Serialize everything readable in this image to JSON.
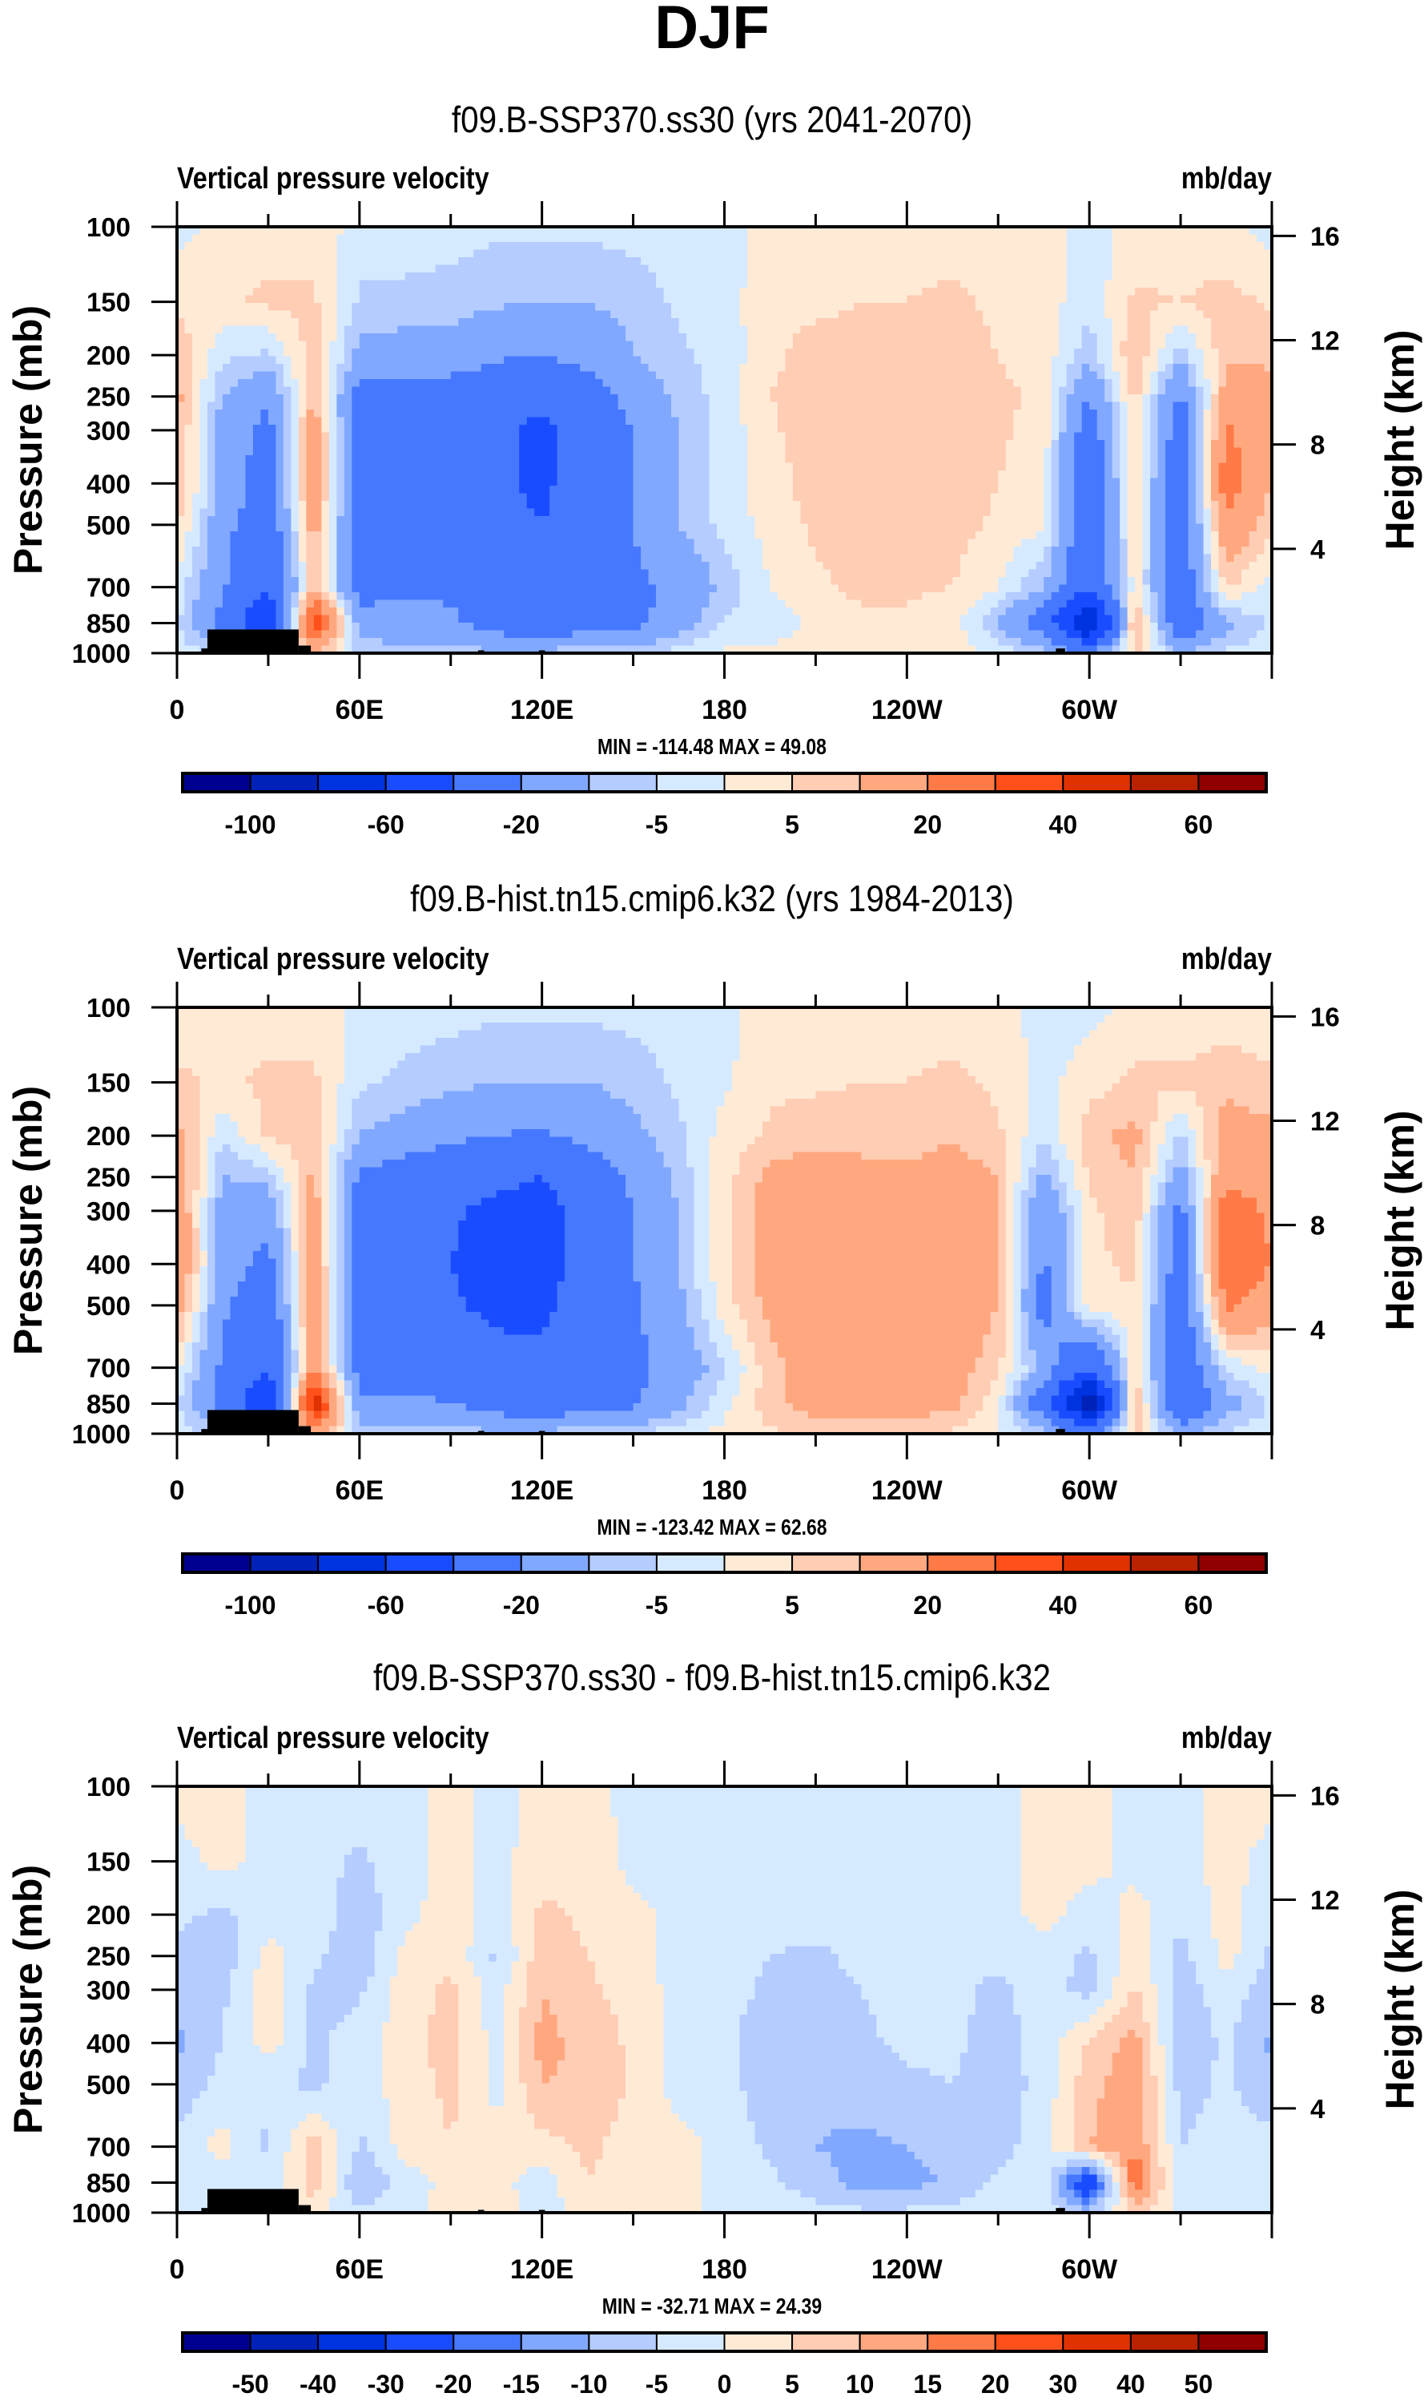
{
  "header": {
    "title": "DJF"
  },
  "chart_data": [
    {
      "type": "heatmap",
      "title": "f09.B-SSP370.ss30 (yrs 2041-2070)",
      "left_string": "Vertical pressure velocity",
      "right_string": "mb/day",
      "xlabel": "",
      "ylabel": "Pressure (mb)",
      "ylabel_right": "Height (km)",
      "x_ticks": [
        "0",
        "60E",
        "120E",
        "180",
        "120W",
        "60W"
      ],
      "y_ticks": [
        "100",
        "150",
        "200",
        "250",
        "300",
        "400",
        "500",
        "700",
        "850",
        "1000"
      ],
      "y_ticks_right": [
        "16",
        "12",
        "8",
        "4"
      ],
      "xlim": [
        0,
        360
      ],
      "ylim": [
        1000,
        100
      ],
      "minmax_text": "MIN = -114.48  MAX =  49.08",
      "min": -114.48,
      "max": 49.08,
      "contour_levels": [
        -100,
        -80,
        -60,
        -40,
        -20,
        -10,
        -5,
        0,
        5,
        10,
        20,
        30,
        40,
        50,
        60
      ],
      "colorbar_labels": [
        "-100",
        "-60",
        "-20",
        "-5",
        "5",
        "20",
        "40",
        "60"
      ],
      "colorbar_label_levels": [
        -100,
        -60,
        -20,
        -5,
        5,
        20,
        40,
        60
      ],
      "grid_lon": [
        0,
        15,
        30,
        45,
        60,
        75,
        90,
        105,
        120,
        135,
        150,
        165,
        180,
        195,
        210,
        225,
        240,
        255,
        270,
        285,
        300,
        315,
        330,
        345,
        360
      ],
      "grid_lev": [
        100,
        150,
        200,
        250,
        300,
        400,
        500,
        700,
        850,
        1000
      ],
      "values": [
        [
          -2,
          2,
          3,
          3,
          -2,
          -3,
          -3,
          -4,
          -4,
          -4,
          -3,
          -2,
          -2,
          2,
          3,
          3,
          3,
          3,
          2,
          2,
          -2,
          2,
          2,
          1,
          -2
        ],
        [
          4,
          4,
          6,
          6,
          -6,
          -6,
          -7,
          -9,
          -10,
          -10,
          -8,
          -4,
          -2,
          3,
          4,
          5,
          5,
          6,
          4,
          3,
          -4,
          6,
          5,
          7,
          4
        ],
        [
          9,
          -4,
          -6,
          8,
          -12,
          -14,
          -14,
          -18,
          -20,
          -16,
          -10,
          -6,
          -3,
          4,
          7,
          6,
          6,
          7,
          5,
          3,
          -8,
          10,
          -8,
          9,
          9
        ],
        [
          12,
          -10,
          -18,
          10,
          -25,
          -26,
          -26,
          -30,
          -35,
          -26,
          -16,
          -8,
          -3,
          5,
          7,
          7,
          7,
          8,
          6,
          4,
          -20,
          7,
          -22,
          14,
          12
        ],
        [
          11,
          -14,
          -24,
          16,
          -28,
          -28,
          -28,
          -36,
          -45,
          -30,
          -20,
          -10,
          -3,
          4,
          8,
          8,
          9,
          10,
          6,
          3,
          -28,
          6,
          -28,
          22,
          11
        ],
        [
          10,
          -12,
          -26,
          18,
          -28,
          -28,
          -28,
          -36,
          -44,
          -30,
          -20,
          -10,
          -3,
          3,
          7,
          8,
          9,
          8,
          5,
          2,
          -30,
          4,
          -30,
          26,
          10
        ],
        [
          6,
          -16,
          -30,
          14,
          -28,
          -28,
          -27,
          -34,
          -40,
          -28,
          -20,
          -10,
          -3,
          2,
          6,
          8,
          8,
          7,
          4,
          1,
          -30,
          4,
          -30,
          18,
          6
        ],
        [
          -2,
          -18,
          -40,
          10,
          -26,
          -22,
          -22,
          -28,
          -32,
          -26,
          -22,
          -18,
          -8,
          0,
          4,
          6,
          6,
          5,
          0,
          -10,
          -36,
          3,
          -30,
          6,
          -2
        ],
        [
          -4,
          -24,
          -60,
          40,
          -14,
          -16,
          -18,
          -26,
          -30,
          -26,
          -24,
          -14,
          -4,
          -4,
          2,
          4,
          4,
          2,
          -10,
          -28,
          -90,
          14,
          -32,
          -12,
          -4
        ],
        [
          -2,
          -6,
          -20,
          10,
          -6,
          -8,
          -8,
          -8,
          -8,
          -6,
          -5,
          -3,
          1,
          2,
          3,
          4,
          4,
          3,
          -2,
          -8,
          -20,
          6,
          -10,
          -4,
          -2
        ]
      ],
      "terrain": [
        [
          10,
          40,
          880
        ],
        [
          8,
          12,
          975
        ],
        [
          40,
          44,
          960
        ],
        [
          99,
          101,
          985
        ],
        [
          119,
          121,
          985
        ],
        [
          125,
          160,
          992
        ],
        [
          289,
          292,
          975
        ],
        [
          292,
          310,
          992
        ]
      ]
    },
    {
      "type": "heatmap",
      "title": "f09.B-hist.tn15.cmip6.k32 (yrs 1984-2013)",
      "left_string": "Vertical pressure velocity",
      "right_string": "mb/day",
      "xlabel": "",
      "ylabel": "Pressure (mb)",
      "ylabel_right": "Height (km)",
      "x_ticks": [
        "0",
        "60E",
        "120E",
        "180",
        "120W",
        "60W"
      ],
      "y_ticks": [
        "100",
        "150",
        "200",
        "250",
        "300",
        "400",
        "500",
        "700",
        "850",
        "1000"
      ],
      "y_ticks_right": [
        "16",
        "12",
        "8",
        "4"
      ],
      "xlim": [
        0,
        360
      ],
      "ylim": [
        1000,
        100
      ],
      "minmax_text": "MIN = -123.42  MAX =  62.68",
      "min": -123.42,
      "max": 62.68,
      "contour_levels": [
        -100,
        -80,
        -60,
        -40,
        -20,
        -10,
        -5,
        0,
        5,
        10,
        20,
        30,
        40,
        50,
        60
      ],
      "colorbar_labels": [
        "-100",
        "-60",
        "-20",
        "-5",
        "5",
        "20",
        "40",
        "60"
      ],
      "colorbar_label_levels": [
        -100,
        -60,
        -20,
        -5,
        5,
        20,
        40,
        60
      ],
      "grid_lon": [
        0,
        15,
        30,
        45,
        60,
        75,
        90,
        105,
        120,
        135,
        150,
        165,
        180,
        195,
        210,
        225,
        240,
        255,
        270,
        285,
        300,
        315,
        330,
        345,
        360
      ],
      "grid_lev": [
        100,
        150,
        200,
        250,
        300,
        400,
        500,
        700,
        850,
        1000
      ],
      "values": [
        [
          2,
          2,
          3,
          3,
          -2,
          -3,
          -3,
          -4,
          -4,
          -4,
          -3,
          -2,
          -2,
          3,
          3,
          3,
          3,
          3,
          2,
          -2,
          -2,
          2,
          2,
          2,
          2
        ],
        [
          6,
          4,
          6,
          6,
          -4,
          -6,
          -8,
          -10,
          -10,
          -10,
          -8,
          -4,
          -1,
          4,
          4,
          5,
          5,
          6,
          4,
          -2,
          3,
          6,
          6,
          8,
          6
        ],
        [
          12,
          -4,
          6,
          8,
          -10,
          -14,
          -18,
          -20,
          -22,
          -16,
          -12,
          -6,
          2,
          6,
          8,
          8,
          8,
          9,
          6,
          -4,
          8,
          12,
          -6,
          14,
          12
        ],
        [
          16,
          -10,
          -8,
          12,
          -22,
          -26,
          -28,
          -36,
          -40,
          -28,
          -18,
          -8,
          3,
          12,
          14,
          12,
          11,
          14,
          10,
          -12,
          6,
          10,
          -14,
          18,
          16
        ],
        [
          18,
          -14,
          -16,
          14,
          -26,
          -30,
          -38,
          -44,
          -48,
          -32,
          -20,
          -10,
          4,
          14,
          16,
          14,
          12,
          15,
          10,
          -20,
          4,
          8,
          -24,
          26,
          18
        ],
        [
          20,
          -14,
          -24,
          16,
          -28,
          -30,
          -40,
          -46,
          -48,
          -32,
          -20,
          -10,
          4,
          14,
          16,
          16,
          16,
          16,
          10,
          -22,
          4,
          6,
          -28,
          30,
          20
        ],
        [
          14,
          -18,
          -30,
          18,
          -28,
          -30,
          -38,
          -44,
          -44,
          -30,
          -22,
          -12,
          3,
          12,
          16,
          16,
          16,
          16,
          10,
          -26,
          4,
          4,
          -30,
          22,
          14
        ],
        [
          2,
          -22,
          -40,
          18,
          -26,
          -24,
          -28,
          -34,
          -36,
          -28,
          -22,
          -16,
          -6,
          8,
          14,
          16,
          16,
          14,
          6,
          -12,
          -40,
          4,
          -32,
          -4,
          2
        ],
        [
          -4,
          -26,
          -60,
          50,
          -18,
          -18,
          -20,
          -26,
          -30,
          -24,
          -22,
          -12,
          -2,
          8,
          14,
          16,
          14,
          12,
          2,
          -30,
          -100,
          14,
          -40,
          -14,
          -4
        ],
        [
          -2,
          -8,
          -20,
          14,
          -6,
          -8,
          -8,
          -8,
          -8,
          -6,
          -5,
          -2,
          2,
          4,
          6,
          6,
          6,
          4,
          0,
          -8,
          -24,
          6,
          -10,
          -4,
          -2
        ]
      ],
      "terrain": [
        [
          10,
          40,
          880
        ],
        [
          8,
          12,
          975
        ],
        [
          40,
          44,
          960
        ],
        [
          99,
          101,
          985
        ],
        [
          119,
          121,
          985
        ],
        [
          125,
          160,
          992
        ],
        [
          289,
          292,
          975
        ],
        [
          292,
          310,
          992
        ]
      ]
    },
    {
      "type": "heatmap",
      "title": "f09.B-SSP370.ss30 - f09.B-hist.tn15.cmip6.k32",
      "left_string": "Vertical pressure velocity",
      "right_string": "mb/day",
      "xlabel": "",
      "ylabel": "Pressure (mb)",
      "ylabel_right": "Height (km)",
      "x_ticks": [
        "0",
        "60E",
        "120E",
        "180",
        "120W",
        "60W"
      ],
      "y_ticks": [
        "100",
        "150",
        "200",
        "250",
        "300",
        "400",
        "500",
        "700",
        "850",
        "1000"
      ],
      "y_ticks_right": [
        "16",
        "12",
        "8",
        "4"
      ],
      "xlim": [
        0,
        360
      ],
      "ylim": [
        1000,
        100
      ],
      "minmax_text": "MIN = -32.71  MAX =  24.39",
      "min": -32.71,
      "max": 24.39,
      "contour_levels": [
        -50,
        -40,
        -30,
        -20,
        -15,
        -10,
        -5,
        0,
        5,
        10,
        15,
        20,
        30,
        40,
        50
      ],
      "colorbar_labels": [
        "-50",
        "-40",
        "-30",
        "-20",
        "-15",
        "-10",
        "-5",
        "0",
        "5",
        "10",
        "15",
        "20",
        "30",
        "40",
        "50"
      ],
      "colorbar_label_levels": [
        -50,
        -40,
        -30,
        -20,
        -15,
        -10,
        -5,
        0,
        5,
        10,
        15,
        20,
        30,
        40,
        50
      ],
      "grid_lon": [
        0,
        15,
        30,
        45,
        60,
        75,
        90,
        105,
        120,
        135,
        150,
        165,
        180,
        195,
        210,
        225,
        240,
        255,
        270,
        285,
        300,
        315,
        330,
        345,
        360
      ],
      "grid_lev": [
        100,
        150,
        200,
        250,
        300,
        400,
        500,
        700,
        850,
        1000
      ],
      "values": [
        [
          2,
          2,
          -2,
          -2,
          -2,
          -2,
          2,
          -2,
          2,
          2,
          -2,
          -2,
          -2,
          -2,
          -2,
          -2,
          -2,
          -2,
          -2,
          2,
          2,
          -2,
          -2,
          2,
          2
        ],
        [
          -2,
          2,
          -2,
          -3,
          -6,
          -2,
          2,
          -2,
          3,
          4,
          -2,
          -2,
          -2,
          -2,
          -2,
          -2,
          -2,
          -2,
          -2,
          2,
          2,
          -2,
          -2,
          2,
          -2
        ],
        [
          -4,
          -6,
          -3,
          -2,
          -8,
          -2,
          3,
          -3,
          6,
          4,
          2,
          -2,
          -2,
          -3,
          -3,
          -2,
          -2,
          -2,
          -2,
          2,
          -3,
          2,
          -4,
          2,
          -4
        ],
        [
          -6,
          -8,
          2,
          -4,
          -9,
          2,
          4,
          -6,
          8,
          5,
          2,
          -2,
          -3,
          -5,
          -6,
          -4,
          -3,
          -3,
          -4,
          -2,
          -6,
          3,
          -7,
          2,
          -6
        ],
        [
          -8,
          -6,
          3,
          -6,
          -6,
          3,
          6,
          -3,
          10,
          6,
          3,
          -2,
          -3,
          -6,
          -6,
          -5,
          -3,
          -4,
          -6,
          -3,
          -7,
          6,
          -8,
          -2,
          -8
        ],
        [
          -11,
          -5,
          2,
          -6,
          -3,
          3,
          7,
          -2,
          12,
          8,
          4,
          -2,
          -4,
          -8,
          -8,
          -6,
          -4,
          -4,
          -7,
          -3,
          6,
          12,
          -9,
          -4,
          -11
        ],
        [
          -9,
          -3,
          -4,
          -6,
          -3,
          3,
          6,
          -2,
          10,
          9,
          4,
          -2,
          -3,
          -8,
          -9,
          -8,
          -6,
          -5,
          -8,
          -3,
          8,
          14,
          -7,
          -4,
          -9
        ],
        [
          -3,
          2,
          -6,
          8,
          -6,
          2,
          5,
          2,
          3,
          6,
          3,
          2,
          -2,
          -6,
          -10,
          -11,
          -10,
          -8,
          -7,
          -2,
          10,
          15,
          -5,
          -3,
          -3
        ],
        [
          -2,
          -3,
          -4,
          8,
          -10,
          -3,
          2,
          2,
          -3,
          5,
          3,
          2,
          -2,
          -4,
          -8,
          -12,
          -12,
          -9,
          -4,
          -2,
          -30,
          20,
          -3,
          -2,
          -2
        ],
        [
          -2,
          -2,
          -2,
          2,
          -4,
          -2,
          2,
          2,
          -2,
          2,
          2,
          2,
          -2,
          -2,
          -3,
          -4,
          -4,
          -3,
          -2,
          -2,
          -8,
          6,
          -2,
          -2,
          -2
        ]
      ],
      "terrain": [
        [
          10,
          40,
          880
        ],
        [
          8,
          12,
          975
        ],
        [
          40,
          44,
          960
        ],
        [
          99,
          101,
          985
        ],
        [
          119,
          121,
          985
        ],
        [
          125,
          160,
          992
        ],
        [
          289,
          292,
          975
        ],
        [
          292,
          310,
          992
        ]
      ]
    }
  ],
  "colors": [
    "#000090",
    "#0022b8",
    "#0033e0",
    "#1a4cff",
    "#4678ff",
    "#80a8ff",
    "#b4ccff",
    "#d6eaff",
    "#ffead6",
    "#ffccb4",
    "#ffa880",
    "#ff7a46",
    "#ff501a",
    "#e03200",
    "#b82200",
    "#900000"
  ]
}
